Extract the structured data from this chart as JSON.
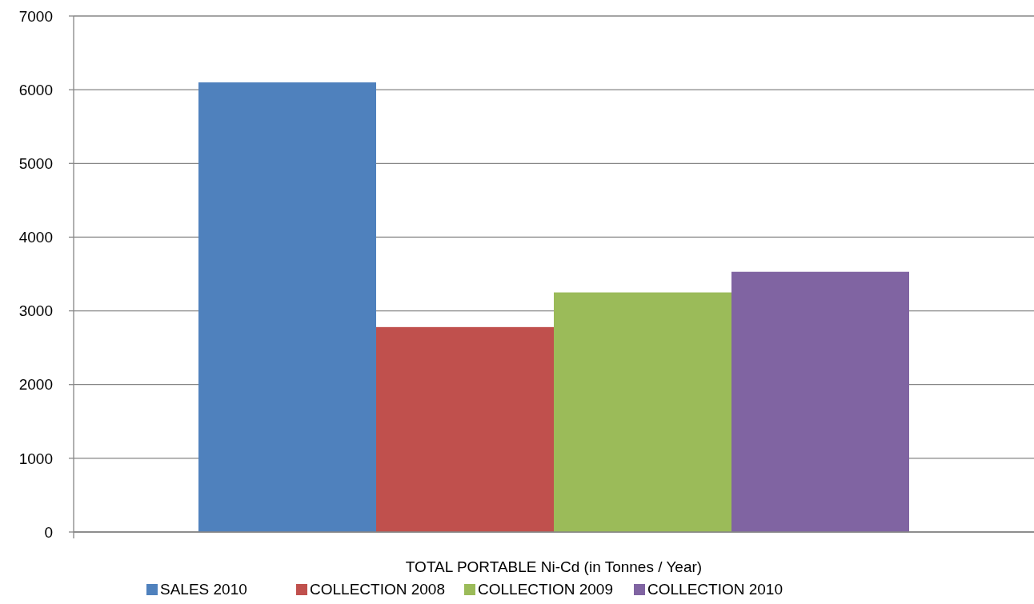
{
  "chart_data": {
    "type": "bar",
    "categories": [
      "TOTAL  PORTABLE Ni-Cd (in Tonnes / Year)"
    ],
    "series": [
      {
        "name": "SALES 2010",
        "color": "#4f81bd",
        "values": [
          6100
        ]
      },
      {
        "name": "COLLECTION 2008",
        "color": "#c0504d",
        "values": [
          2780
        ]
      },
      {
        "name": "COLLECTION 2009",
        "color": "#9bbb59",
        "values": [
          3250
        ]
      },
      {
        "name": "COLLECTION 2010",
        "color": "#8064a2",
        "values": [
          3530
        ]
      }
    ],
    "ylim": [
      0,
      7000
    ],
    "yticks": [
      0,
      1000,
      2000,
      3000,
      4000,
      5000,
      6000,
      7000
    ],
    "grid": "y",
    "legend": "bottom"
  }
}
